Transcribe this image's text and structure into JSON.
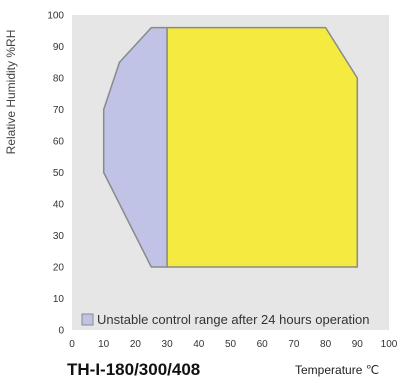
{
  "chart_data": {
    "type": "area",
    "title": "",
    "model_label": "TH-I-180/300/408",
    "xlabel": "Temperature ℃",
    "ylabel": "Relative Humidity %RH",
    "xlim": [
      0,
      100
    ],
    "ylim": [
      0,
      100
    ],
    "x_ticks": [
      0,
      10,
      20,
      30,
      40,
      50,
      60,
      70,
      80,
      90,
      100
    ],
    "y_ticks": [
      0,
      10,
      20,
      30,
      40,
      50,
      60,
      70,
      80,
      90,
      100
    ],
    "grid": false,
    "legend_position": "bottom-left",
    "series": [
      {
        "name": "Unstable control range after 24 hours operation",
        "color": "#c0c3e6",
        "points": [
          [
            10,
            50
          ],
          [
            10,
            70
          ],
          [
            15,
            85
          ],
          [
            25,
            96
          ],
          [
            30,
            96
          ],
          [
            30,
            20
          ],
          [
            25,
            20
          ],
          [
            20,
            30
          ]
        ]
      },
      {
        "color": "#f5ea3f",
        "points": [
          [
            30,
            20
          ],
          [
            30,
            96
          ],
          [
            80,
            96
          ],
          [
            90,
            80
          ],
          [
            90,
            20
          ]
        ]
      }
    ],
    "background": "#e6e6e6",
    "outline_color": "#8a8a8a"
  }
}
